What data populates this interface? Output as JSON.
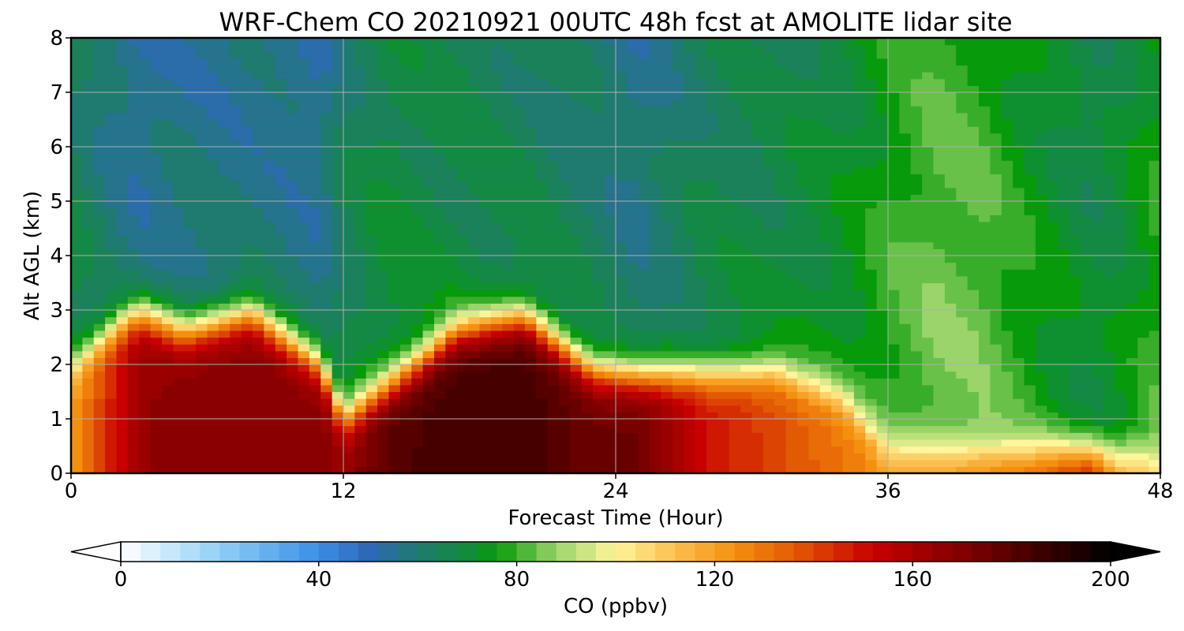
{
  "chart_data": {
    "type": "heatmap",
    "title": "WRF-Chem CO  20210921 00UTC 48h fcst at AMOLITE lidar site",
    "xlabel": "Forecast Time (Hour)",
    "ylabel": "Alt AGL (km)",
    "xlim": [
      0,
      48
    ],
    "ylim": [
      0,
      8
    ],
    "xticks": [
      "0",
      "12",
      "24",
      "36",
      "48"
    ],
    "yticks": [
      "0",
      "1",
      "2",
      "3",
      "4",
      "5",
      "6",
      "7",
      "8"
    ],
    "grid": true,
    "colorbar": {
      "label": "CO  (ppbv)",
      "range": [
        0,
        200
      ],
      "step": 4,
      "extend": "both",
      "ticks": [
        "0",
        "40",
        "80",
        "120",
        "160",
        "200"
      ],
      "stops": [
        {
          "v": 0,
          "c": "#ffffff"
        },
        {
          "v": 20,
          "c": "#8fd0f5"
        },
        {
          "v": 40,
          "c": "#3a8ee6"
        },
        {
          "v": 50,
          "c": "#2e69b8"
        },
        {
          "v": 60,
          "c": "#1f7a70"
        },
        {
          "v": 72,
          "c": "#0f9030"
        },
        {
          "v": 76,
          "c": "#079a0a"
        },
        {
          "v": 88,
          "c": "#9ad46a"
        },
        {
          "v": 100,
          "c": "#fff59a"
        },
        {
          "v": 112,
          "c": "#fbbf50"
        },
        {
          "v": 124,
          "c": "#f5900e"
        },
        {
          "v": 136,
          "c": "#e35a05"
        },
        {
          "v": 152,
          "c": "#c80000"
        },
        {
          "v": 172,
          "c": "#7a0000"
        },
        {
          "v": 200,
          "c": "#000000"
        }
      ]
    },
    "times": [
      0,
      2,
      3,
      5,
      8,
      11,
      12,
      14,
      17,
      20,
      23,
      25,
      28,
      31,
      34,
      36,
      38,
      40,
      42,
      45,
      46,
      48
    ],
    "surface_co": [
      120,
      150,
      165,
      168,
      170,
      168,
      165,
      180,
      185,
      185,
      175,
      175,
      150,
      140,
      130,
      125,
      120,
      130,
      135,
      155,
      120,
      110
    ],
    "layer_top_km": [
      2.0,
      2.7,
      2.95,
      2.6,
      2.95,
      2.0,
      1.0,
      1.6,
      2.6,
      2.85,
      1.9,
      1.8,
      1.8,
      1.9,
      1.4,
      0.4,
      0.4,
      0.4,
      0.4,
      0.4,
      0.4,
      0.4
    ],
    "free_trop_co": [
      68,
      60,
      58,
      60,
      60,
      58,
      66,
      72,
      70,
      68,
      64,
      60,
      68,
      70,
      74,
      80,
      85,
      84,
      78,
      70,
      72,
      80
    ]
  }
}
